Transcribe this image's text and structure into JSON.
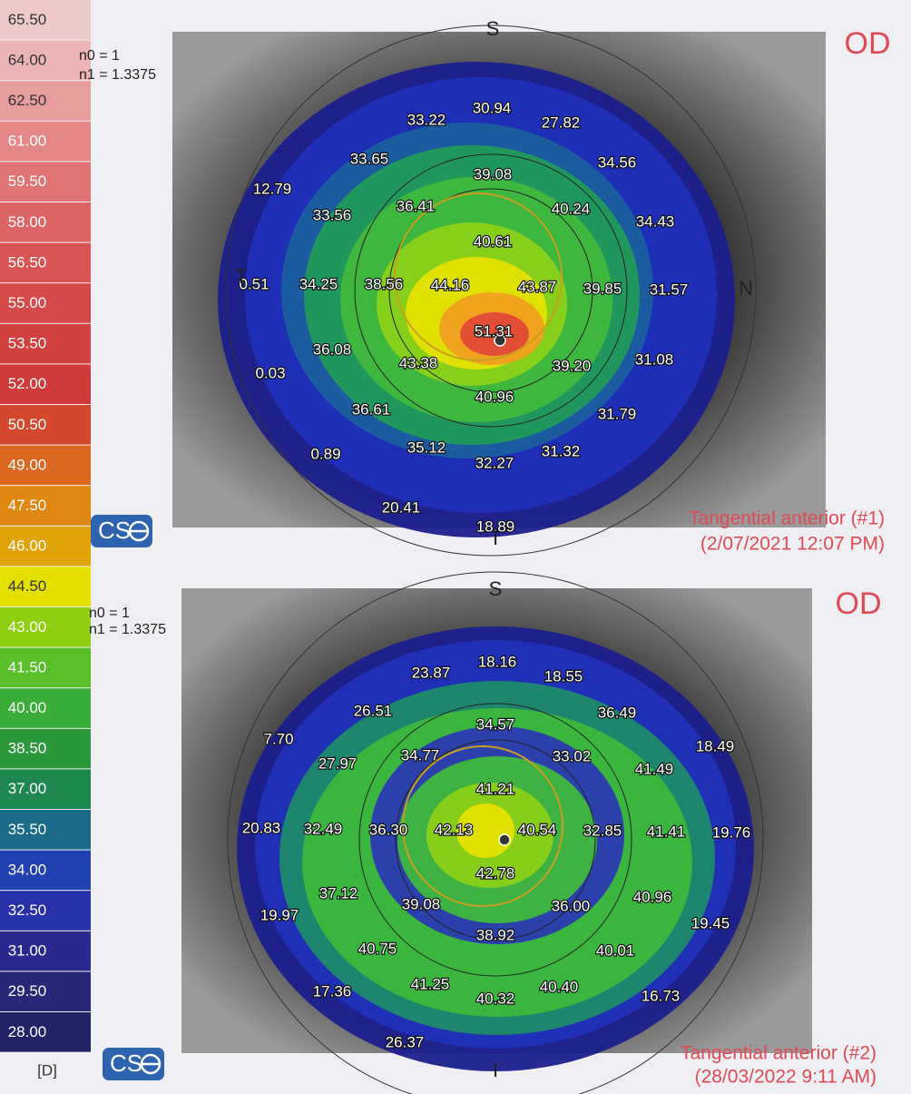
{
  "scale": {
    "items": [
      {
        "label": "65.50",
        "color": "#eec9c9"
      },
      {
        "label": "64.00",
        "color": "#ebb5b5"
      },
      {
        "label": "62.50",
        "color": "#e79d9d"
      },
      {
        "label": "61.00",
        "color": "#e48787"
      },
      {
        "label": "59.50",
        "color": "#e07474"
      },
      {
        "label": "58.00",
        "color": "#dd6464"
      },
      {
        "label": "56.50",
        "color": "#d95555"
      },
      {
        "label": "55.00",
        "color": "#d64949"
      },
      {
        "label": "53.50",
        "color": "#d34040"
      },
      {
        "label": "52.00",
        "color": "#d03a3a"
      },
      {
        "label": "50.50",
        "color": "#d4492d"
      },
      {
        "label": "49.00",
        "color": "#db6820"
      },
      {
        "label": "47.50",
        "color": "#df8712"
      },
      {
        "label": "46.00",
        "color": "#dfa40a"
      },
      {
        "label": "44.50",
        "color": "#e6e000"
      },
      {
        "label": "43.00",
        "color": "#8ecf12"
      },
      {
        "label": "41.50",
        "color": "#58bf28"
      },
      {
        "label": "40.00",
        "color": "#39ad38"
      },
      {
        "label": "38.50",
        "color": "#2b983b"
      },
      {
        "label": "37.00",
        "color": "#1f8850"
      },
      {
        "label": "35.50",
        "color": "#1b6a88"
      },
      {
        "label": "34.00",
        "color": "#2141b0"
      },
      {
        "label": "32.50",
        "color": "#2931a8"
      },
      {
        "label": "31.00",
        "color": "#29298f"
      },
      {
        "label": "29.50",
        "color": "#272779"
      },
      {
        "label": "28.00",
        "color": "#232367"
      }
    ],
    "unit": "[D]"
  },
  "maps": [
    {
      "n0": "n0 = 1",
      "n1": "n1 = 1.3375",
      "eye": "OD",
      "logo": "CS",
      "orientation": [
        "S",
        "N",
        "T",
        "I"
      ],
      "values": [
        "30.94",
        "33.22",
        "27.82",
        "33.65",
        "34.56",
        "39.08",
        "12.79",
        "36.41",
        "40.24",
        "33.56",
        "34.43",
        "40.61",
        "0.51",
        "34.25",
        "38.56",
        "44.16",
        "43.87",
        "39.85",
        "31.57",
        "51.31",
        "36.08",
        "43.38",
        "39.20",
        "31.08",
        "0.03",
        "40.96",
        "36.61",
        "31.79",
        "35.12",
        "31.32",
        "0.89",
        "32.27",
        "20.41",
        "18.89"
      ],
      "caption": [
        "Tangential anterior (#1)",
        "(2/07/2021 12:07 PM)"
      ]
    },
    {
      "n0": "n0 = 1",
      "n1": "n1 = 1.3375",
      "eye": "OD",
      "logo": "CS",
      "orientation": [
        "S",
        "I"
      ],
      "values": [
        "18.16",
        "23.87",
        "18.55",
        "26.51",
        "36.49",
        "34.57",
        "7.70",
        "18.49",
        "27.97",
        "34.77",
        "33.02",
        "41.49",
        "41.21",
        "20.83",
        "32.49",
        "36.30",
        "42.13",
        "40.54",
        "32.85",
        "41.41",
        "19.76",
        "42.78",
        "37.12",
        "39.08",
        "36.00",
        "40.96",
        "19.97",
        "19.45",
        "38.92",
        "40.75",
        "40.01",
        "41.25",
        "40.40",
        "17.36",
        "40.32",
        "16.73",
        "26.37"
      ],
      "caption": [
        "Tangential anterior (#2)",
        "(28/03/2022 9:11 AM)"
      ]
    }
  ]
}
